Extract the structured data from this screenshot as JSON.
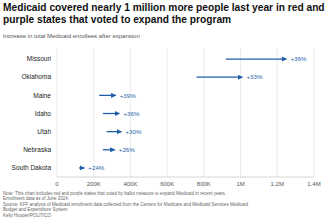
{
  "chart_data": {
    "type": "arrow",
    "title": "Medicaid covered nearly 1 million more people last year in red and purple states that voted to expand the program",
    "subtitle": "Increase in total Medicaid enrollees after expansion",
    "categories": [
      "Missouri",
      "Oklahoma",
      "Maine",
      "Idaho",
      "Utah",
      "Nebraska",
      "South Dakota"
    ],
    "start_values": [
      920000,
      760000,
      230000,
      250000,
      270000,
      250000,
      120000
    ],
    "values": [
      1250000,
      1010000,
      320000,
      340000,
      351000,
      315000,
      149000
    ],
    "change_labels": [
      "+36%",
      "+33%",
      "+39%",
      "+36%",
      "+30%",
      "+26%",
      "+24%"
    ],
    "color": "#1f5fa8",
    "orientation": "horizontal",
    "xlim": [
      0,
      1400000
    ],
    "xticks": [
      0,
      {
        "value": 200000,
        "label": "200K"
      },
      {
        "value": 400000,
        "label": "400K"
      },
      {
        "value": 600000,
        "label": "600K"
      },
      {
        "value": 800000,
        "label": "800K"
      },
      {
        "value": 1000000,
        "label": "1M"
      },
      {
        "value": 1200000,
        "label": "1.2M"
      },
      {
        "value": 1400000,
        "label": "1.4M"
      }
    ],
    "grid": true,
    "note": "Note: This chart includes red and purple states that voted by ballot measure to expand Medicaid in recent years. Enrollment data as of June 2024.",
    "source": "Source: KFF analysis of Medicaid enrollment data collected from the Centers for Medicare and Medicaid Services Medicaid Budget and Expenditure System",
    "credit": "Kelly Hooper/POLITICO"
  }
}
